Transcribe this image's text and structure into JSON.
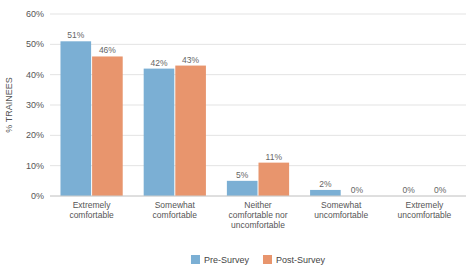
{
  "chart_data": {
    "type": "bar",
    "ylabel": "% TRAINEES",
    "categories": [
      "Extremely\ncomfortable",
      "Somewhat\ncomfortable",
      "Neither\ncomfortable nor\nuncomfortable",
      "Somewhat\nuncomfortable",
      "Extremely\nuncomfortable"
    ],
    "series": [
      {
        "name": "Pre-Survey",
        "color": "#7bafd4",
        "values": [
          51,
          42,
          5,
          2,
          0
        ],
        "value_labels": [
          "51%",
          "42%",
          "5%",
          "2%",
          "0%"
        ]
      },
      {
        "name": "Post-Survey",
        "color": "#e8956d",
        "values": [
          46,
          43,
          11,
          0,
          0
        ],
        "value_labels": [
          "46%",
          "43%",
          "11%",
          "0%",
          "0%"
        ]
      }
    ],
    "ylim": [
      0,
      60
    ],
    "yticks": [
      {
        "value": 0,
        "label": "0%"
      },
      {
        "value": 10,
        "label": "10%"
      },
      {
        "value": 20,
        "label": "20%"
      },
      {
        "value": 30,
        "label": "30%"
      },
      {
        "value": 40,
        "label": "40%"
      },
      {
        "value": 50,
        "label": "50%"
      },
      {
        "value": 60,
        "label": "60%"
      }
    ],
    "grid": true,
    "legend": "bottom",
    "data_labels": true
  }
}
